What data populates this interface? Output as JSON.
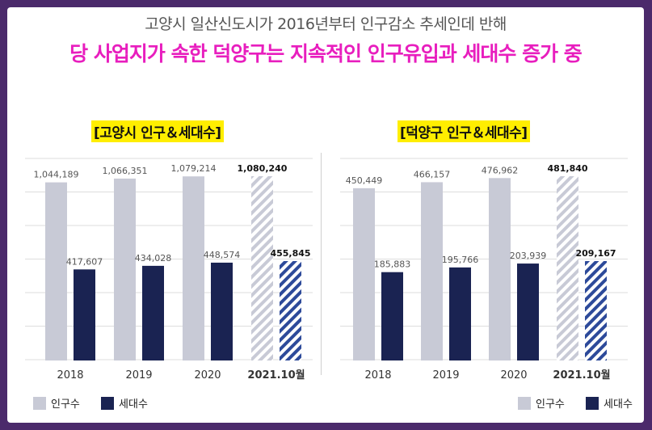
{
  "header": {
    "subtitle": "고양시 일산신도시가 2016년부터 인구감소 추세인데 반해",
    "title": "당 사업지가 속한 덕양구는 지속적인 인구유입과 세대수 증가 중"
  },
  "colors": {
    "population": "#c8cad6",
    "households": "#1a2352",
    "population_projected": "#c8cad6",
    "households_projected": "#2d4a9a",
    "title": "#e81ebe",
    "highlight": "#ffee00"
  },
  "legend": {
    "population": "인구수",
    "households": "세대수"
  },
  "chart_data": [
    {
      "type": "bar",
      "title": "[고양시 인구＆세대수]",
      "categories": [
        "2018",
        "2019",
        "2020",
        "2021.10월"
      ],
      "series": [
        {
          "name": "인구수",
          "values": [
            1044189,
            1066351,
            1079214,
            1080240
          ],
          "labels": [
            "1,044,189",
            "1,066,351",
            "1,079,214",
            "1,080,240"
          ]
        },
        {
          "name": "세대수",
          "values": [
            417607,
            434028,
            448574,
            455845
          ],
          "labels": [
            "417,607",
            "434,028",
            "448,574",
            "455,845"
          ]
        }
      ],
      "projected_category": "2021.10월"
    },
    {
      "type": "bar",
      "title": "[덕양구 인구＆세대수]",
      "categories": [
        "2018",
        "2019",
        "2020",
        "2021.10월"
      ],
      "series": [
        {
          "name": "인구수",
          "values": [
            450449,
            466157,
            476962,
            481840
          ],
          "labels": [
            "450,449",
            "466,157",
            "476,962",
            "481,840"
          ]
        },
        {
          "name": "세대수",
          "values": [
            185883,
            195766,
            203939,
            209167
          ],
          "labels": [
            "185,883",
            "195,766",
            "203,939",
            "209,167"
          ]
        }
      ],
      "projected_category": "2021.10월"
    }
  ]
}
